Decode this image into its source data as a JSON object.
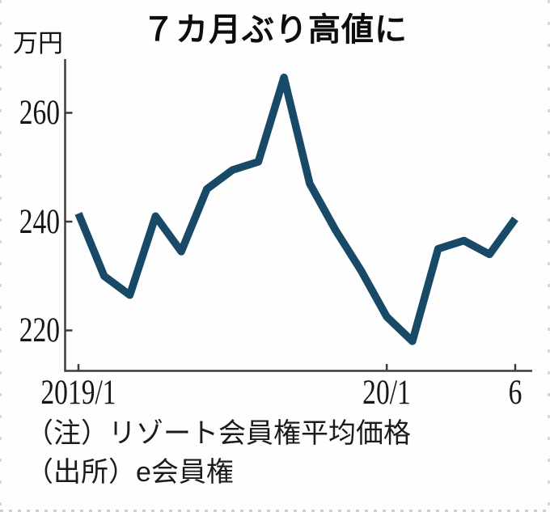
{
  "title": "７カ月ぶり高値に",
  "y_axis": {
    "unit": "万円",
    "ticks": [
      "260",
      "240",
      "220"
    ]
  },
  "x_axis": {
    "ticks": [
      "2019/1",
      "20/1",
      "6"
    ]
  },
  "notes": {
    "note": "（注）リゾート会員権平均価格",
    "source": "（出所）e会員権"
  },
  "colors": {
    "line": "#184a68",
    "axis": "#3c3c3c",
    "text": "#111111",
    "border_dots": "#d7d7d5"
  },
  "chart_data": {
    "type": "line",
    "title": "７カ月ぶり高値に",
    "ylabel": "万円",
    "series_name": "リゾート会員権平均価格",
    "x": [
      "2019/1",
      "2019/2",
      "2019/3",
      "2019/4",
      "2019/5",
      "2019/6",
      "2019/7",
      "2019/8",
      "2019/9",
      "2019/10",
      "2019/11",
      "2019/12",
      "2020/1",
      "2020/2",
      "2020/3",
      "2020/4",
      "2020/5",
      "2020/6"
    ],
    "values": [
      241.5,
      230,
      226.5,
      241,
      234.5,
      246,
      249.5,
      251,
      266.5,
      247,
      238.5,
      231,
      222.5,
      218,
      235,
      236.5,
      234,
      240.5
    ],
    "ylim": [
      214,
      270
    ],
    "yticks": [
      260,
      240,
      220
    ],
    "xtick_positions": [
      "2019/1",
      "20/1",
      "6"
    ],
    "xtick_indices": [
      0,
      12,
      17
    ],
    "grid": false,
    "legend": "none"
  }
}
